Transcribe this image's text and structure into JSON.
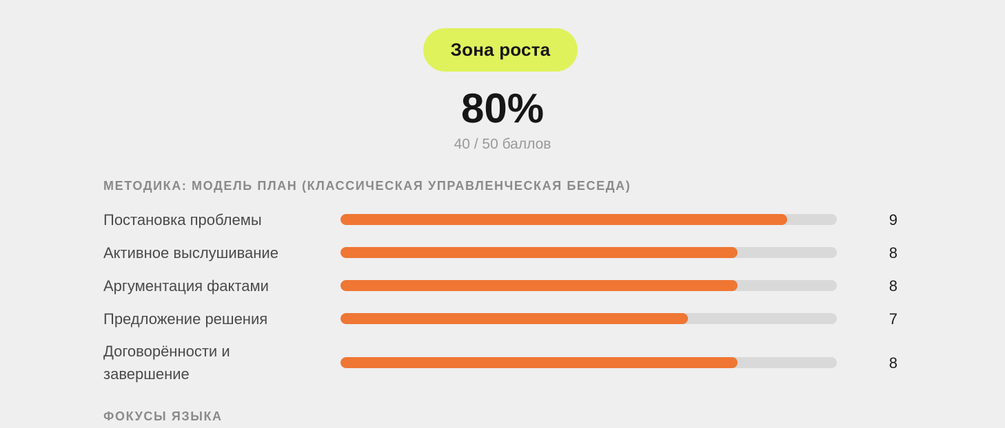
{
  "header": {
    "badge_label": "Зона роста",
    "badge_color": "#dff25c",
    "percent": "80%",
    "points": "40 / 50 баллов"
  },
  "method": {
    "title": "МЕТОДИКА: МОДЕЛЬ ПЛАН (КЛАССИЧЕСКАЯ УПРАВЛЕНЧЕСКАЯ БЕСЕДА)",
    "max_score": 10,
    "bar_color": "#ef7633",
    "track_color": "#d9d9d9",
    "metrics": [
      {
        "label": "Постановка проблемы",
        "score": 9
      },
      {
        "label": "Активное выслушивание",
        "score": 8
      },
      {
        "label": "Аргументация фактами",
        "score": 8
      },
      {
        "label": "Предложение решения",
        "score": 7
      },
      {
        "label": "Договорённости и завершение",
        "score": 8
      }
    ]
  },
  "language": {
    "title": "ФОКУСЫ ЯЗЫКА"
  }
}
